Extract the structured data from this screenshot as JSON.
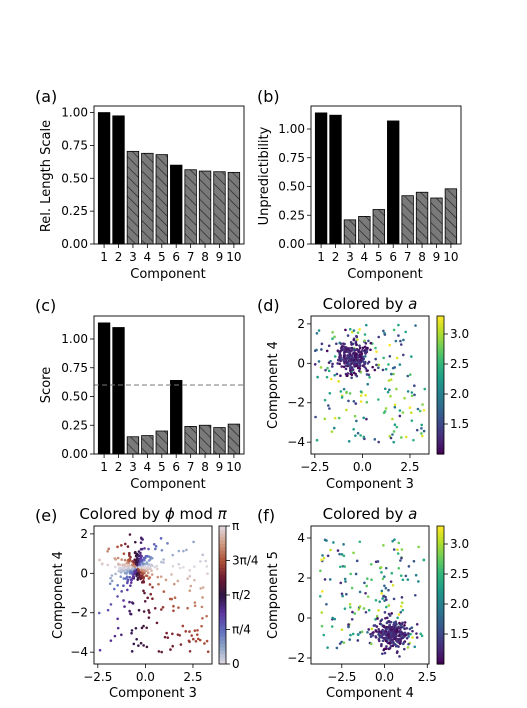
{
  "chart_data": [
    {
      "panel_label": "(a)",
      "type": "bar",
      "title": "",
      "xlabel": "Component",
      "ylabel": "Rel. Length Scale",
      "categories": [
        "1",
        "2",
        "3",
        "4",
        "5",
        "6",
        "7",
        "8",
        "9",
        "10"
      ],
      "values": [
        1.0,
        0.975,
        0.705,
        0.69,
        0.68,
        0.6,
        0.565,
        0.555,
        0.55,
        0.545
      ],
      "bar_style": [
        "solid",
        "solid",
        "hatched",
        "hatched",
        "hatched",
        "solid",
        "hatched",
        "hatched",
        "hatched",
        "hatched"
      ],
      "ylim": [
        0,
        1.05
      ],
      "yticks": [
        0.0,
        0.25,
        0.5,
        0.75,
        1.0
      ],
      "ytick_labels": [
        "0.00",
        "0.25",
        "0.50",
        "0.75",
        "1.00"
      ]
    },
    {
      "panel_label": "(b)",
      "type": "bar",
      "title": "",
      "xlabel": "Component",
      "ylabel": "Unpredictibility",
      "categories": [
        "1",
        "2",
        "3",
        "4",
        "5",
        "6",
        "7",
        "8",
        "9",
        "10"
      ],
      "values": [
        1.14,
        1.12,
        0.21,
        0.24,
        0.3,
        1.07,
        0.42,
        0.45,
        0.4,
        0.48
      ],
      "bar_style": [
        "solid",
        "solid",
        "hatched",
        "hatched",
        "hatched",
        "solid",
        "hatched",
        "hatched",
        "hatched",
        "hatched"
      ],
      "ylim": [
        0,
        1.2
      ],
      "yticks": [
        0.0,
        0.25,
        0.5,
        0.75,
        1.0
      ],
      "ytick_labels": [
        "0.00",
        "0.25",
        "0.50",
        "0.75",
        "1.00"
      ]
    },
    {
      "panel_label": "(c)",
      "type": "bar",
      "title": "",
      "xlabel": "Component",
      "ylabel": "Score",
      "categories": [
        "1",
        "2",
        "3",
        "4",
        "5",
        "6",
        "7",
        "8",
        "9",
        "10"
      ],
      "values": [
        1.14,
        1.1,
        0.15,
        0.16,
        0.2,
        0.64,
        0.24,
        0.25,
        0.23,
        0.26
      ],
      "bar_style": [
        "solid",
        "solid",
        "hatched",
        "hatched",
        "hatched",
        "solid",
        "hatched",
        "hatched",
        "hatched",
        "hatched"
      ],
      "threshold": 0.6,
      "ylim": [
        0,
        1.2
      ],
      "yticks": [
        0.0,
        0.25,
        0.5,
        0.75,
        1.0
      ],
      "ytick_labels": [
        "0.00",
        "0.25",
        "0.50",
        "0.75",
        "1.00"
      ]
    },
    {
      "panel_label": "(d)",
      "type": "scatter",
      "title": "Colored by a",
      "title_text": "Colored by ",
      "title_var": "a",
      "xlabel": "Component 3",
      "ylabel": "Component 4",
      "xlim": [
        -2.7,
        3.5
      ],
      "ylim": [
        -4.6,
        2.4
      ],
      "xticks": [
        -2.5,
        0.0,
        2.5
      ],
      "xtick_labels": [
        "−2.5",
        "0.0",
        "2.5"
      ],
      "yticks": [
        -4,
        -2,
        0,
        2
      ],
      "ytick_labels": [
        "−4",
        "−2",
        "0",
        "2"
      ],
      "colorbar": {
        "colormap": "viridis",
        "range": [
          1.0,
          3.3
        ],
        "ticks": [
          1.5,
          2.0,
          2.5,
          3.0
        ],
        "tick_labels": [
          "1.5",
          "2.0",
          "2.5",
          "3.0"
        ]
      },
      "dense_cluster": {
        "center": [
          -0.45,
          0.3
        ],
        "spread": [
          0.45,
          0.4
        ],
        "count": 260,
        "color_value_range": [
          1.0,
          1.5
        ]
      },
      "sparse_points": {
        "x_range": [
          -2.5,
          3.3
        ],
        "y_range": [
          -4.0,
          2.0
        ],
        "count": 170,
        "color_value_range": [
          1.2,
          3.3
        ]
      }
    },
    {
      "panel_label": "(e)",
      "type": "scatter",
      "title": "Colored by φ mod π",
      "title_text": "Colored by ",
      "title_phi": "ϕ",
      "title_mod": " mod ",
      "title_pi": "π",
      "xlabel": "Component 3",
      "ylabel": "Component 4",
      "xlim": [
        -2.7,
        3.5
      ],
      "ylim": [
        -4.6,
        2.4
      ],
      "xticks": [
        -2.5,
        0.0,
        2.5
      ],
      "xtick_labels": [
        "−2.5",
        "0.0",
        "2.5"
      ],
      "yticks": [
        -4,
        -2,
        0,
        2
      ],
      "ytick_labels": [
        "−4",
        "−2",
        "0",
        "2"
      ],
      "colorbar": {
        "colormap": "twilight",
        "range": [
          0,
          3.14159
        ],
        "ticks": [
          0,
          0.7854,
          1.5708,
          2.3562,
          3.14159
        ],
        "tick_labels": [
          "0",
          "π/4",
          "π/2",
          "3π/4",
          "π"
        ]
      },
      "dense_cluster": {
        "center": [
          -0.45,
          0.3
        ],
        "spread": [
          0.45,
          0.4
        ],
        "count": 260
      },
      "sparse_points": {
        "x_range": [
          -2.5,
          3.3
        ],
        "y_range": [
          -4.0,
          2.0
        ],
        "count": 170
      }
    },
    {
      "panel_label": "(f)",
      "type": "scatter",
      "title": "Colored by a",
      "title_text": "Colored by ",
      "title_var": "a",
      "xlabel": "Component 4",
      "ylabel": "Component 5",
      "xlim": [
        -4.3,
        2.6
      ],
      "ylim": [
        -2.3,
        4.6
      ],
      "xticks": [
        -2.5,
        0.0,
        2.5
      ],
      "xtick_labels": [
        "−2.5",
        "0.0",
        "2.5"
      ],
      "yticks": [
        -2,
        0,
        2,
        4
      ],
      "ytick_labels": [
        "−2",
        "0",
        "2",
        "4"
      ],
      "colorbar": {
        "colormap": "viridis",
        "range": [
          1.0,
          3.3
        ],
        "ticks": [
          1.5,
          2.0,
          2.5,
          3.0
        ],
        "tick_labels": [
          "1.5",
          "2.0",
          "2.5",
          "3.0"
        ]
      },
      "dense_cluster": {
        "center": [
          0.4,
          -0.8
        ],
        "spread": [
          0.5,
          0.35
        ],
        "count": 260,
        "color_value_range": [
          1.0,
          1.5
        ]
      },
      "sparse_points": {
        "x_range": [
          -3.8,
          2.4
        ],
        "y_range": [
          -1.5,
          4.0
        ],
        "count": 170,
        "color_value_range": [
          1.2,
          3.3
        ]
      }
    }
  ]
}
